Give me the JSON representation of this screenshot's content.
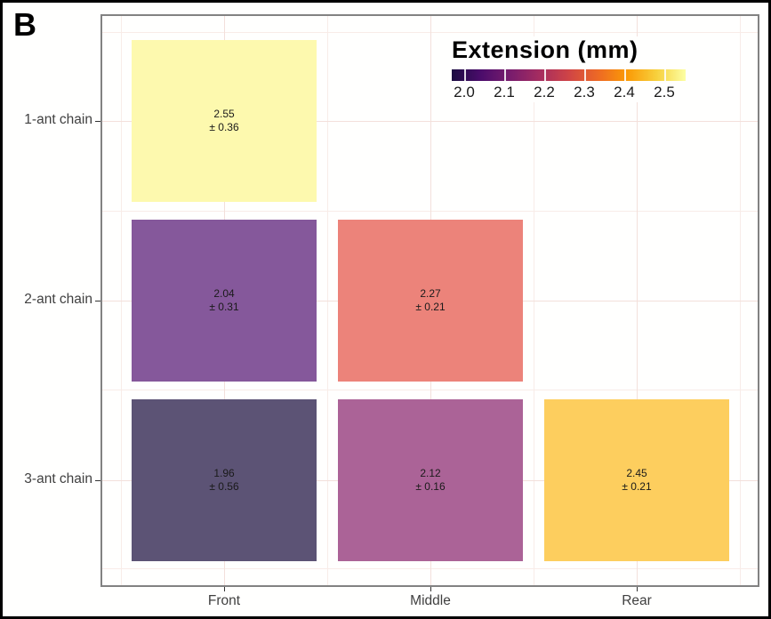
{
  "figure": {
    "panel_label": "B"
  },
  "legend": {
    "title": "Extension (mm)",
    "tick_labels": [
      "2.0",
      "2.1",
      "2.2",
      "2.3",
      "2.4",
      "2.5"
    ],
    "gradient_stops": [
      "#1b0c42",
      "#4b0c6b",
      "#781c6d",
      "#a52c60",
      "#cf4446",
      "#ed6925",
      "#fb9a06",
      "#f7d03c",
      "#fcffa4"
    ]
  },
  "chart_data": {
    "type": "heatmap",
    "legend_title": "Extension (mm)",
    "x_categories": [
      "Front",
      "Middle",
      "Rear"
    ],
    "y_categories": [
      "1-ant chain",
      "2-ant chain",
      "3-ant chain"
    ],
    "value_unit": "mm",
    "colorbar_ticks": [
      2.0,
      2.1,
      2.2,
      2.3,
      2.4,
      2.5
    ],
    "colorbar_range": [
      1.96,
      2.55
    ],
    "grid": true,
    "cells": [
      {
        "row": "1-ant chain",
        "col": "Front",
        "mean": 2.55,
        "sd": 0.36,
        "color": "#fdf9ae"
      },
      {
        "row": "2-ant chain",
        "col": "Front",
        "mean": 2.04,
        "sd": 0.31,
        "color": "#85589b"
      },
      {
        "row": "2-ant chain",
        "col": "Middle",
        "mean": 2.27,
        "sd": 0.21,
        "color": "#ec837a"
      },
      {
        "row": "3-ant chain",
        "col": "Front",
        "mean": 1.96,
        "sd": 0.56,
        "color": "#5c5375"
      },
      {
        "row": "3-ant chain",
        "col": "Middle",
        "mean": 2.12,
        "sd": 0.16,
        "color": "#ab6397"
      },
      {
        "row": "3-ant chain",
        "col": "Rear",
        "mean": 2.45,
        "sd": 0.21,
        "color": "#fdce5e"
      }
    ],
    "colors": {
      "panel_border": "#828282",
      "grid_major": "#f3e0db",
      "grid_minor": "#f8ece8",
      "axis_text": "#404040",
      "cell_text": "#1a1a1a"
    }
  }
}
